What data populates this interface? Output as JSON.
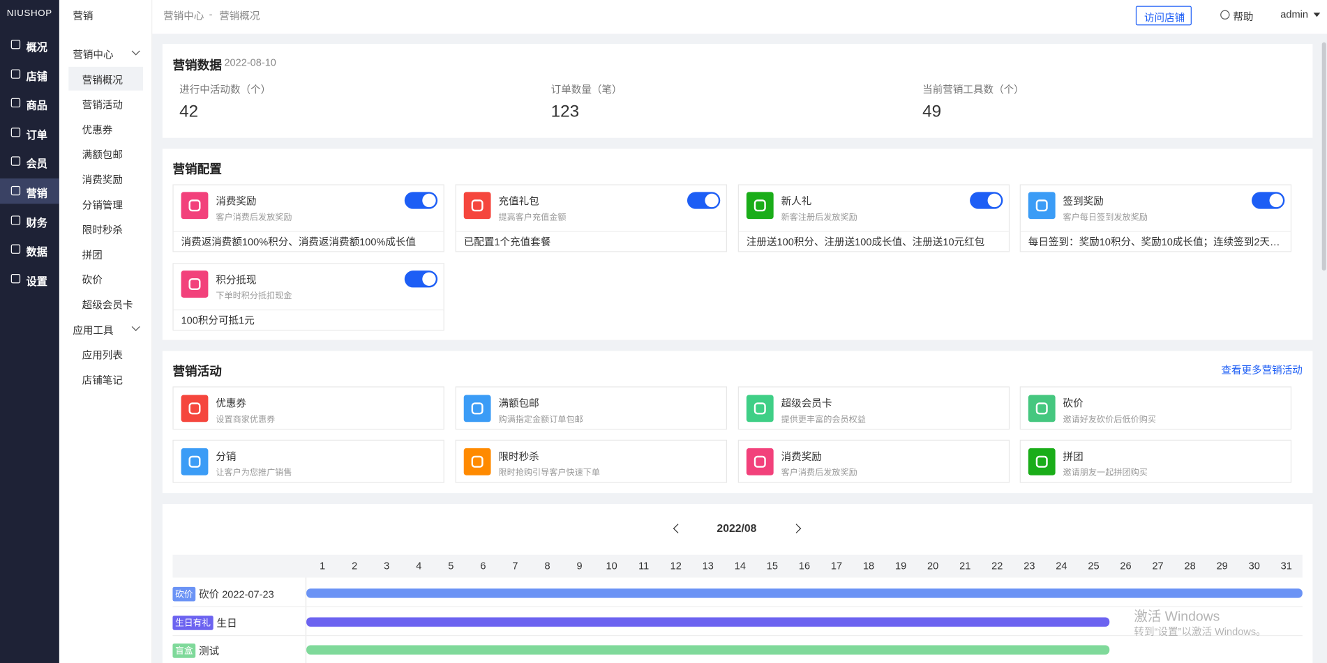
{
  "sidebar": {
    "logo": "NIUSHOP",
    "active": 5,
    "items": [
      "概况",
      "店铺",
      "商品",
      "订单",
      "会员",
      "营销",
      "财务",
      "数据",
      "设置"
    ]
  },
  "submenu": {
    "title": "营销",
    "groups": [
      {
        "label": "营销中心",
        "active": 0,
        "items": [
          "营销概况",
          "营销活动",
          "优惠券",
          "满额包邮",
          "消费奖励",
          "分销管理",
          "限时秒杀",
          "拼团",
          "砍价",
          "超级会员卡"
        ]
      },
      {
        "label": "应用工具",
        "items": [
          "应用列表",
          "店铺笔记"
        ]
      }
    ]
  },
  "header": {
    "breadcrumb": [
      "营销中心",
      "营销概况"
    ],
    "separator": "-",
    "visit_button": "访问店铺",
    "help": "帮助",
    "user": "admin"
  },
  "stats": {
    "title": "营销数据",
    "date": "2022-08-10",
    "items": [
      {
        "label": "进行中活动数（个）",
        "value": 42
      },
      {
        "label": "订单数量（笔）",
        "value": 123
      },
      {
        "label": "当前营销工具数（个）",
        "value": 49
      }
    ]
  },
  "config": {
    "title": "营销配置",
    "cards": [
      {
        "name": "消费奖励",
        "desc": "客户消费后发放奖励",
        "detail": "消费返消费额100%积分、消费返消费额100%成长值",
        "color": "#f2417b"
      },
      {
        "name": "充值礼包",
        "desc": "提高客户充值金额",
        "detail": "已配置1个充值套餐",
        "color": "#f5463d"
      },
      {
        "name": "新人礼",
        "desc": "新客注册后发放奖励",
        "detail": "注册送100积分、注册送100成长值、注册送10元红包",
        "color": "#1aad19"
      },
      {
        "name": "签到奖励",
        "desc": "客户每日签到发放奖励",
        "detail": "每日签到：奖励10积分、奖励10成长值；连续签到2天：…",
        "color": "#3b9cf6"
      },
      {
        "name": "积分抵现",
        "desc": "下单时积分抵扣现金",
        "detail": "100积分可抵1元",
        "color": "#f2417b"
      }
    ]
  },
  "activities": {
    "title": "营销活动",
    "link": "查看更多营销活动",
    "cards": [
      {
        "name": "优惠券",
        "desc": "设置商家优惠券",
        "color": "#f5463d"
      },
      {
        "name": "满额包邮",
        "desc": "购满指定金额订单包邮",
        "color": "#3b9cf6"
      },
      {
        "name": "超级会员卡",
        "desc": "提供更丰富的会员权益",
        "color": "#3fcf86"
      },
      {
        "name": "砍价",
        "desc": "邀请好友砍价后低价购买",
        "color": "#45c77f"
      },
      {
        "name": "分销",
        "desc": "让客户为您推广销售",
        "color": "#3b9cf6"
      },
      {
        "name": "限时秒杀",
        "desc": "限时抢购引导客户快速下单",
        "color": "#ff8a00"
      },
      {
        "name": "消费奖励",
        "desc": "客户消费后发放奖励",
        "color": "#f2417b"
      },
      {
        "name": "拼团",
        "desc": "邀请朋友一起拼团购买",
        "color": "#1aad19"
      }
    ]
  },
  "calendar": {
    "month": "2022/08",
    "days": [
      1,
      2,
      3,
      4,
      5,
      6,
      7,
      8,
      9,
      10,
      11,
      12,
      13,
      14,
      15,
      16,
      17,
      18,
      19,
      20,
      21,
      22,
      23,
      24,
      25,
      26,
      27,
      28,
      29,
      30,
      31
    ],
    "rows": [
      {
        "tag": "砍价",
        "name": "砍价 2022-07-23",
        "color": "#6b93f5"
      },
      {
        "tag": "生日有礼",
        "name": "生日",
        "color": "#6c63f0"
      },
      {
        "tag": "盲盒",
        "name": "测试",
        "color": "#7fd99a"
      }
    ]
  },
  "watermark": {
    "title": "激活 Windows",
    "text": "转到“设置”以激活 Windows。"
  }
}
